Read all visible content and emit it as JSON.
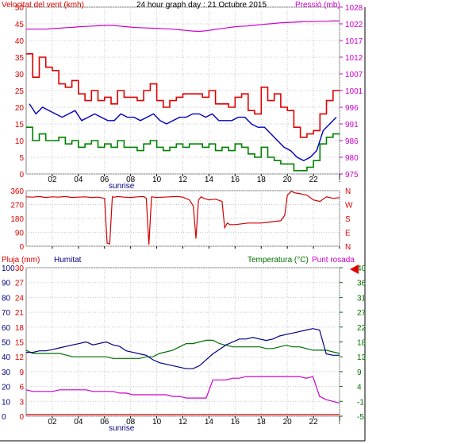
{
  "colors": {
    "wind_red": "#e00000",
    "wind_blue": "#0000c0",
    "wind_green": "#008000",
    "pressure": "#cc00cc",
    "direction": "#d00000",
    "humidity": "#000080",
    "temperature": "#007000",
    "dewpoint": "#cc00cc",
    "rain": "#d00000",
    "marker": "#e00000"
  },
  "x_ticks": [
    "02",
    "04",
    "06",
    "08",
    "10",
    "12",
    "14",
    "16",
    "18",
    "20",
    "22",
    "!"
  ],
  "sunrise_label": "sunrise",
  "chart_data": [
    {
      "type": "line",
      "title": "24 hour graph day : 21 Octubre 2015",
      "ylabel_left": "Velocitat del vent (kmh)",
      "ylabel_right": "Pressió (mb)",
      "y_ticks_left": [
        "50",
        "45",
        "40",
        "35",
        "30",
        "25",
        "20",
        "15",
        "10",
        "5",
        "0"
      ],
      "y_ticks_right": [
        "1028",
        "1022",
        "1017",
        "1012",
        "1007",
        "1001",
        "996",
        "991",
        "986",
        "980",
        "975"
      ],
      "ylim_left": [
        0,
        50
      ],
      "ylim_right": [
        975,
        1028
      ],
      "series": [
        {
          "key": "gust",
          "values": [
            36,
            29,
            35,
            32,
            31,
            27,
            26,
            28,
            24,
            22,
            25,
            22,
            23,
            21,
            25,
            23,
            23,
            22,
            25,
            27,
            22,
            20,
            22,
            23,
            24,
            24,
            24,
            23,
            25,
            21,
            21,
            20,
            23,
            24,
            19,
            18,
            26,
            22,
            24,
            20,
            19,
            14,
            11,
            12,
            13,
            18,
            22,
            25
          ]
        },
        {
          "key": "average",
          "values": [
            21,
            18,
            20,
            19,
            18,
            17,
            18,
            19,
            16,
            17,
            18,
            17,
            16,
            16,
            18,
            17,
            17,
            16,
            17,
            18,
            16,
            15,
            16,
            17,
            17,
            18,
            18,
            17,
            18,
            16,
            16,
            16,
            17,
            17,
            15,
            14,
            14,
            12,
            10,
            8,
            7,
            5,
            4,
            5,
            7,
            13,
            15,
            17
          ]
        },
        {
          "key": "low",
          "values": [
            14,
            10,
            12,
            10,
            10,
            11,
            9,
            10,
            8,
            9,
            10,
            8,
            9,
            8,
            10,
            8,
            8,
            7,
            9,
            10,
            8,
            7,
            8,
            9,
            8,
            9,
            9,
            8,
            9,
            7,
            8,
            7,
            9,
            8,
            6,
            5,
            8,
            5,
            4,
            3,
            3,
            1,
            1,
            2,
            4,
            9,
            11,
            12
          ]
        },
        {
          "key": "pressure",
          "values": [
            1021,
            1021,
            1021,
            1021,
            1021.2,
            1021.3,
            1021.5,
            1021.6,
            1021.8,
            1021.9,
            1022,
            1022.1,
            1022.2,
            1022.2,
            1022,
            1021.8,
            1021.6,
            1021.5,
            1021.4,
            1021.3,
            1021.2,
            1021.1,
            1021,
            1020.8,
            1020.6,
            1020.4,
            1020.3,
            1020.5,
            1020.8,
            1021.1,
            1021.4,
            1021.7,
            1021.9,
            1022,
            1022.2,
            1022.4,
            1022.6,
            1022.8,
            1023,
            1023.1,
            1023.2,
            1023.3,
            1023.4,
            1023.4,
            1023.5,
            1023.5,
            1023.6,
            1023.6
          ]
        }
      ]
    },
    {
      "type": "line",
      "ylabel_right": "N W S E N",
      "y_ticks_left": [
        "360",
        "270",
        "180",
        "90",
        "0"
      ],
      "y_ticks_right": [
        "N",
        "W",
        "S",
        "E",
        "N"
      ],
      "ylim": [
        0,
        360
      ],
      "x": [
        0,
        0.5,
        1,
        1.5,
        2,
        2.5,
        3,
        3.5,
        4,
        4.5,
        5,
        5.5,
        6,
        6.2,
        6.4,
        6.6,
        6.8,
        7,
        7.5,
        8,
        8.5,
        9,
        9.2,
        9.4,
        9.6,
        9.8,
        10,
        10.5,
        11,
        11.5,
        12,
        12.5,
        12.8,
        13,
        13.2,
        13.4,
        13.6,
        14,
        14.5,
        15,
        15.2,
        15.4,
        15.6,
        16,
        16.5,
        17,
        17.5,
        18,
        18.5,
        19,
        19.5,
        19.8,
        20,
        20.3,
        20.6,
        21,
        21.5,
        22,
        22.5,
        23,
        23.5,
        24
      ],
      "values": [
        320,
        318,
        322,
        316,
        320,
        318,
        322,
        316,
        318,
        320,
        316,
        318,
        310,
        20,
        15,
        320,
        318,
        322,
        318,
        316,
        320,
        322,
        310,
        10,
        320,
        318,
        316,
        318,
        320,
        322,
        318,
        300,
        260,
        50,
        300,
        320,
        310,
        300,
        305,
        290,
        120,
        150,
        140,
        140,
        145,
        150,
        150,
        150,
        155,
        160,
        165,
        200,
        330,
        355,
        345,
        340,
        330,
        300,
        290,
        320,
        310,
        315
      ]
    },
    {
      "type": "line",
      "ylabel_left": "Pluja (mm)",
      "ylabel_mid": "Humitat",
      "ylabel_right": "Temperatura (°C)",
      "ylabel_right2": "Punt rosada",
      "y_ticks_rain": [
        "30",
        "27",
        "24",
        "21",
        "18",
        "15",
        "12",
        "9",
        "6",
        "3",
        "0"
      ],
      "y_ticks_humidity": [
        "100",
        "90",
        "80",
        "70",
        "60",
        "50",
        "40",
        "30",
        "20",
        "10",
        "0"
      ],
      "y_ticks_temp": [
        "40",
        "36",
        "31",
        "27",
        "22",
        "18",
        "13",
        "9",
        "4",
        "-1",
        "-5"
      ],
      "ylim_humidity": [
        0,
        100
      ],
      "ylim_temp": [
        -5,
        40
      ],
      "marker_value": 40,
      "series": [
        {
          "key": "humidity",
          "values": [
            43,
            43,
            44,
            44,
            45,
            46,
            47,
            48,
            49,
            50,
            48,
            49,
            50,
            48,
            47,
            44,
            43,
            42,
            41,
            38,
            36,
            35,
            34,
            33,
            32,
            32,
            34,
            38,
            42,
            45,
            48,
            50,
            52,
            52,
            53,
            52,
            51,
            52,
            54,
            55,
            56,
            57,
            58,
            59,
            58,
            42,
            41,
            41
          ]
        },
        {
          "key": "temperature",
          "values": [
            15,
            14,
            14,
            14,
            14,
            14,
            13.5,
            13,
            13,
            13,
            13,
            13,
            13,
            12.5,
            12.5,
            12.5,
            12.5,
            12.5,
            13,
            13,
            14,
            14.5,
            15,
            16,
            17,
            17,
            17.5,
            18,
            18,
            17,
            16.5,
            16,
            16,
            16,
            16,
            16,
            15.5,
            15.5,
            16,
            16.5,
            16,
            16,
            15.5,
            15,
            15,
            15,
            14.5,
            14
          ]
        },
        {
          "key": "dewpoint",
          "values": [
            3,
            2.5,
            2.5,
            2.5,
            2.5,
            3,
            3,
            3,
            3,
            3,
            2.5,
            2.5,
            2.5,
            2.5,
            2,
            2,
            1.5,
            1.5,
            1.5,
            1.5,
            1.5,
            1.5,
            1,
            1,
            0.5,
            0.5,
            0.5,
            0.5,
            6,
            6,
            6,
            6.5,
            6.5,
            7,
            7,
            7,
            7,
            7,
            7,
            7,
            7,
            7,
            6.5,
            7,
            1,
            0,
            -0.5,
            -1
          ]
        },
        {
          "key": "rain",
          "values": [
            0,
            0,
            0,
            0,
            0,
            0,
            0,
            0,
            0,
            0,
            0,
            0,
            0,
            0,
            0,
            0,
            0,
            0,
            0,
            0,
            0,
            0,
            0,
            0,
            0,
            0,
            0,
            0,
            0,
            0,
            0,
            0,
            0,
            0,
            0,
            0,
            0,
            0,
            0,
            0,
            0,
            0,
            0,
            0,
            0,
            0,
            0,
            0
          ]
        }
      ]
    }
  ]
}
